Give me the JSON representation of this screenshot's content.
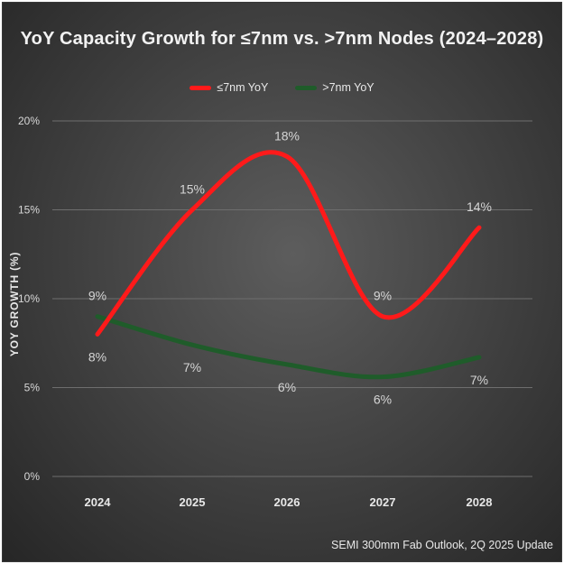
{
  "chart_data": {
    "type": "line",
    "title": "YoY Capacity Growth for ≤7nm vs. >7nm Nodes (2024–2028)",
    "xlabel": "",
    "ylabel": "YOY GROWTH (%)",
    "categories": [
      "2024",
      "2025",
      "2026",
      "2027",
      "2028"
    ],
    "y_ticks": [
      "0%",
      "5%",
      "10%",
      "15%",
      "20%"
    ],
    "y_tick_values": [
      0,
      5,
      10,
      15,
      20
    ],
    "ylim": [
      0,
      20
    ],
    "grid": true,
    "legend": "top-center",
    "smooth": true,
    "series": [
      {
        "name": "≤7nm YoY",
        "color": "#ff1a1a",
        "values": [
          8,
          15,
          18,
          9,
          14
        ],
        "labels": [
          "8%",
          "15%",
          "18%",
          "9%",
          "14%"
        ],
        "label_positions": [
          "below",
          "above",
          "above",
          "above",
          "above"
        ]
      },
      {
        "name": ">7nm YoY",
        "color": "#1f5c2a",
        "values": [
          9,
          7.4,
          6.3,
          5.6,
          6.7
        ],
        "labels": [
          "9%",
          "7%",
          "6%",
          "6%",
          "7%"
        ],
        "label_positions": [
          "above",
          "below",
          "below",
          "below",
          "below"
        ]
      }
    ]
  },
  "source": "SEMI 300mm Fab Outlook, 2Q 2025 Update"
}
